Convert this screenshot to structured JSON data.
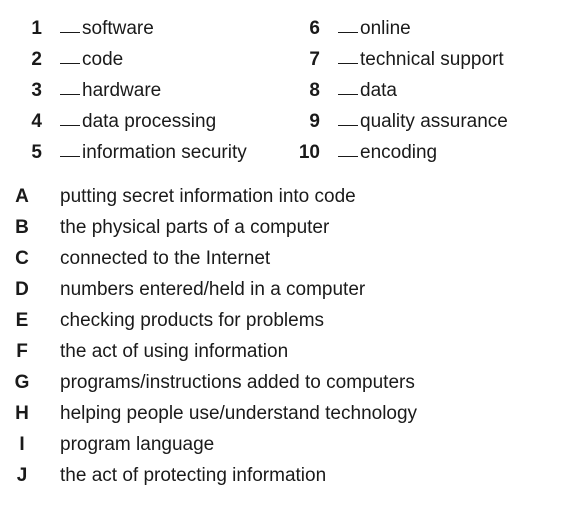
{
  "terms": [
    {
      "num": "1",
      "word": "software"
    },
    {
      "num": "2",
      "word": "code"
    },
    {
      "num": "3",
      "word": "hardware"
    },
    {
      "num": "4",
      "word": "data processing"
    },
    {
      "num": "5",
      "word": "information security"
    },
    {
      "num": "6",
      "word": "online"
    },
    {
      "num": "7",
      "word": "technical support"
    },
    {
      "num": "8",
      "word": "data"
    },
    {
      "num": "9",
      "word": "quality assurance"
    },
    {
      "num": "10",
      "word": "encoding"
    }
  ],
  "definitions": [
    {
      "letter": "A",
      "text": "putting secret information into code"
    },
    {
      "letter": "B",
      "text": "the physical parts of a computer"
    },
    {
      "letter": "C",
      "text": "connected to the Internet"
    },
    {
      "letter": "D",
      "text": "numbers entered/held in a computer"
    },
    {
      "letter": "E",
      "text": "checking products for problems"
    },
    {
      "letter": "F",
      "text": "the act of using information"
    },
    {
      "letter": "G",
      "text": "programs/instructions added to computers"
    },
    {
      "letter": "H",
      "text": "helping people use/understand technology"
    },
    {
      "letter": "I",
      "text": "program language"
    },
    {
      "letter": "J",
      "text": "the act of protecting information"
    }
  ]
}
